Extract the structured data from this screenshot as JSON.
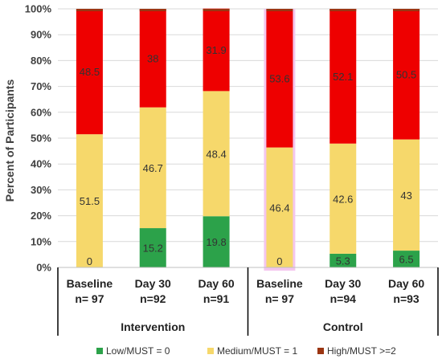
{
  "chart_data": {
    "type": "bar",
    "stacked": true,
    "ylabel": "Percent of Participants",
    "ylim": [
      0,
      100
    ],
    "y_ticks": [
      "0%",
      "10%",
      "20%",
      "30%",
      "40%",
      "50%",
      "60%",
      "70%",
      "80%",
      "90%",
      "100%"
    ],
    "categories": [
      {
        "line1": "Baseline",
        "line2": "n= 97",
        "group": "Intervention"
      },
      {
        "line1": "Day 30",
        "line2": "n=92",
        "group": "Intervention"
      },
      {
        "line1": "Day 60",
        "line2": "n=91",
        "group": "Intervention"
      },
      {
        "line1": "Baseline",
        "line2": "n= 97",
        "group": "Control"
      },
      {
        "line1": "Day 30",
        "line2": "n=94",
        "group": "Control"
      },
      {
        "line1": "Day 60",
        "line2": "n=93",
        "group": "Control"
      }
    ],
    "groups": [
      "Intervention",
      "Control"
    ],
    "series": [
      {
        "name": "Low/MUST = 0",
        "color": "#2ca24a",
        "values": [
          0,
          15.2,
          19.8,
          0,
          5.3,
          6.5
        ],
        "labels": [
          "0",
          "15.2",
          "19.8",
          "0",
          "5.3",
          "6.5"
        ]
      },
      {
        "name": "Medium/MUST = 1",
        "color": "#f6d86b",
        "values": [
          51.5,
          46.7,
          48.4,
          46.4,
          42.6,
          43
        ],
        "labels": [
          "51.5",
          "46.7",
          "48.4",
          "46.4",
          "42.6",
          "43"
        ]
      },
      {
        "name": "High/MUST >=2",
        "color": "#ee0000",
        "values": [
          48.5,
          38,
          31.9,
          53.6,
          52.1,
          50.5
        ],
        "labels": [
          "48.5",
          "38",
          "31.9",
          "53.6",
          "52.1",
          "50.5"
        ]
      }
    ],
    "legend": {
      "position": "bottom",
      "swatch_color": "#9b3512"
    },
    "grid": true
  }
}
